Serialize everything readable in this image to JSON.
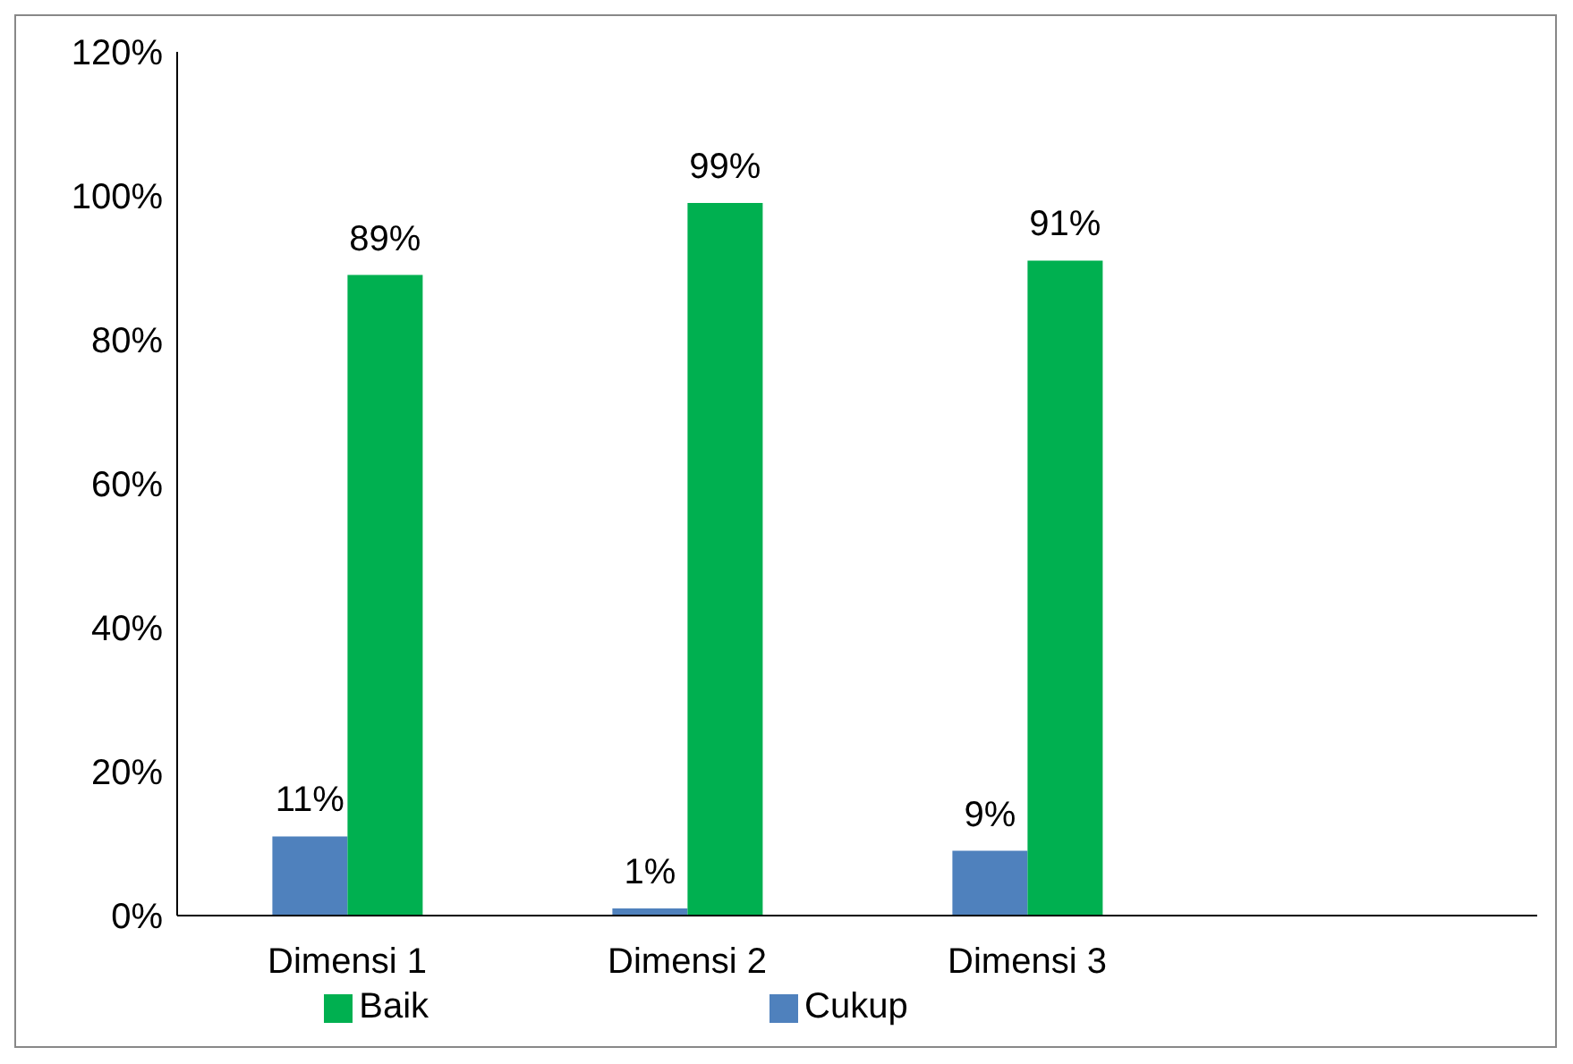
{
  "chart_data": {
    "type": "bar",
    "categories": [
      "Dimensi 1",
      "Dimensi 2",
      "Dimensi 3",
      null
    ],
    "series": [
      {
        "name": "Cukup",
        "color": "#4f81bd",
        "values": [
          11,
          1,
          9,
          null
        ],
        "value_labels": [
          "11%",
          "1%",
          "9%",
          null
        ]
      },
      {
        "name": "Baik",
        "color": "#00b050",
        "values": [
          89,
          99,
          91,
          null
        ],
        "value_labels": [
          "89%",
          "99%",
          "91%",
          null
        ]
      }
    ],
    "ylim": [
      0,
      120
    ],
    "yticks": [
      {
        "value": 0,
        "label": "0%"
      },
      {
        "value": 20,
        "label": "20%"
      },
      {
        "value": 40,
        "label": "40%"
      },
      {
        "value": 60,
        "label": "60%"
      },
      {
        "value": 80,
        "label": "80%"
      },
      {
        "value": 100,
        "label": "100%"
      },
      {
        "value": 120,
        "label": "120%"
      }
    ],
    "legend": "bottom"
  }
}
